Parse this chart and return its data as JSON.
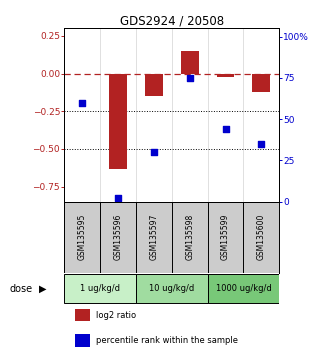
{
  "title": "GDS2924 / 20508",
  "samples": [
    "GSM135595",
    "GSM135596",
    "GSM135597",
    "GSM135598",
    "GSM135599",
    "GSM135600"
  ],
  "log2_ratio": [
    0.0,
    -0.63,
    -0.15,
    0.15,
    -0.02,
    -0.12
  ],
  "percentile_rank": [
    60,
    2,
    30,
    75,
    44,
    35
  ],
  "ylim_left": [
    -0.85,
    0.3
  ],
  "ylim_right": [
    0,
    105
  ],
  "yticks_left": [
    0.25,
    0,
    -0.25,
    -0.5,
    -0.75
  ],
  "yticks_right": [
    100,
    75,
    50,
    25,
    0
  ],
  "hlines_dotted": [
    -0.25,
    -0.5
  ],
  "bar_color": "#b22222",
  "scatter_color": "#0000cd",
  "bar_width": 0.5,
  "dose_groups": [
    {
      "label": "1 ug/kg/d",
      "samples": [
        0,
        1
      ],
      "color": "#c8f0c8"
    },
    {
      "label": "10 ug/kg/d",
      "samples": [
        2,
        3
      ],
      "color": "#a0dca0"
    },
    {
      "label": "1000 ug/kg/d",
      "samples": [
        4,
        5
      ],
      "color": "#78c878"
    }
  ],
  "legend_items": [
    {
      "label": "log2 ratio",
      "color": "#b22222"
    },
    {
      "label": "percentile rank within the sample",
      "color": "#0000cd"
    }
  ],
  "dose_label": "dose",
  "title_color": "#000000",
  "left_tick_color": "#b22222",
  "right_tick_color": "#0000cd",
  "background_color": "#ffffff",
  "sample_bg_color": "#cccccc",
  "fig_width": 3.21,
  "fig_height": 3.54,
  "dpi": 100
}
